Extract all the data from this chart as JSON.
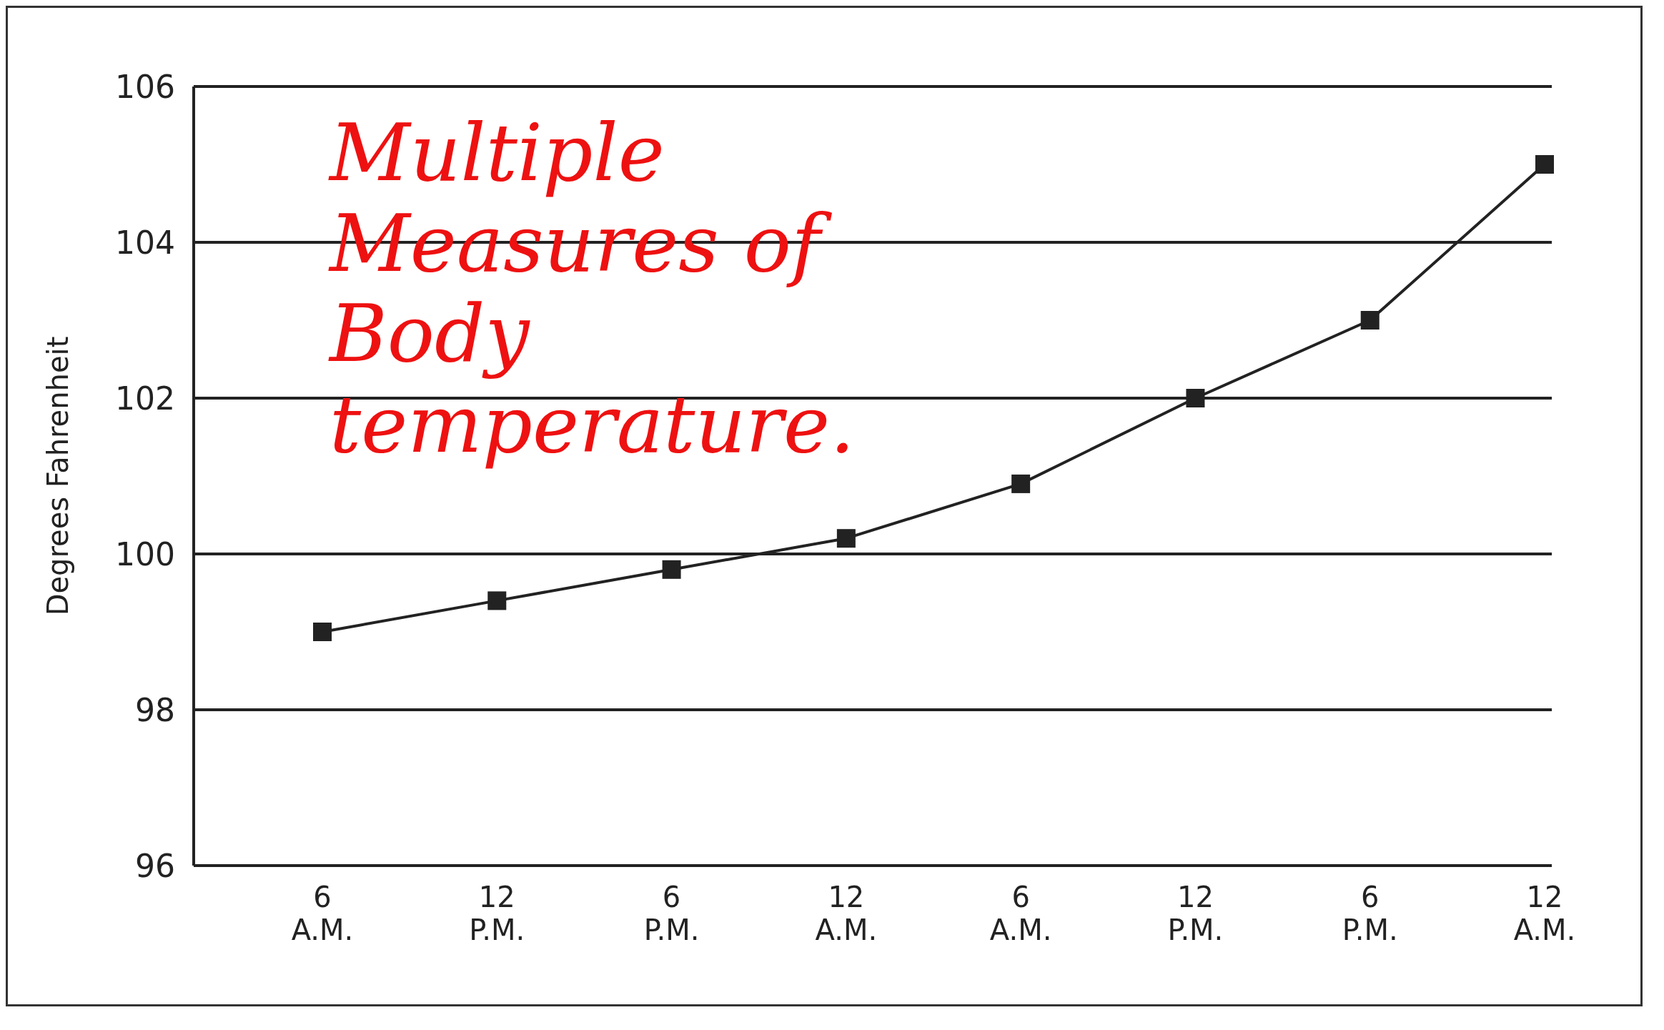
{
  "chart_data": {
    "type": "line",
    "ylabel": "Degrees Fahrenheit",
    "categories": [
      "6\nA.M.",
      "12\nP.M.",
      "6\nP.M.",
      "12\nA.M.",
      "6\nA.M.",
      "12\nP.M.",
      "6\nP.M.",
      "12\nA.M."
    ],
    "series": [
      {
        "color": "#222222",
        "values": [
          99,
          99.4,
          99.8,
          100.2,
          100.9,
          102,
          103,
          105
        ]
      }
    ],
    "ylim": [
      96,
      106
    ],
    "yticks": [
      96,
      98,
      100,
      102,
      104,
      106
    ],
    "grid": "y",
    "marker": "square",
    "line_style": "solid",
    "annotations": [
      "Multiple Measures of Body temperature."
    ]
  }
}
